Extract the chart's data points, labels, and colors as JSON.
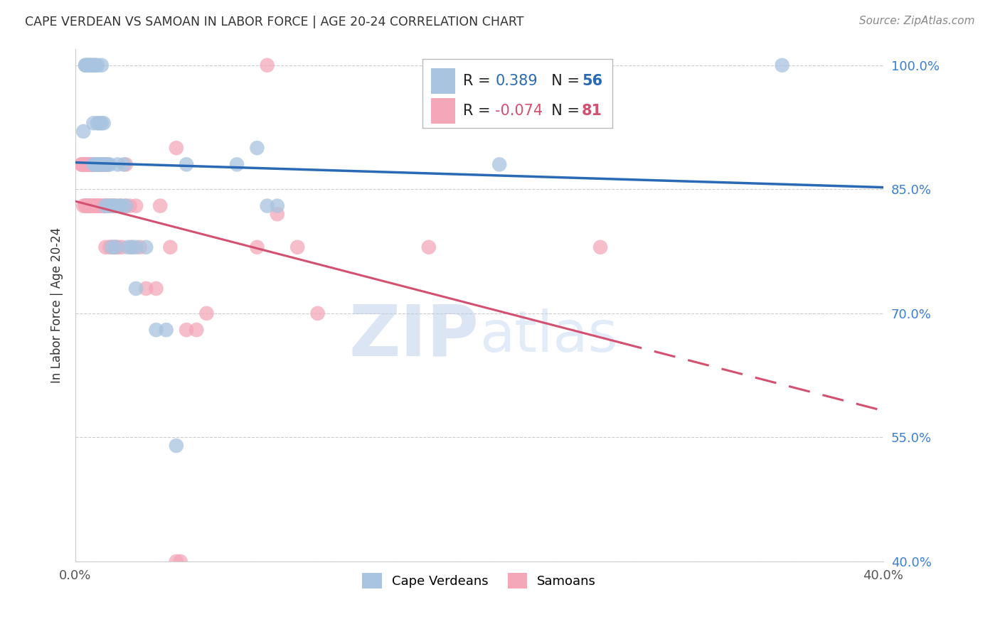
{
  "title": "CAPE VERDEAN VS SAMOAN IN LABOR FORCE | AGE 20-24 CORRELATION CHART",
  "source": "Source: ZipAtlas.com",
  "ylabel": "In Labor Force | Age 20-24",
  "xlim": [
    0.0,
    0.4
  ],
  "ylim": [
    0.4,
    1.02
  ],
  "yticks": [
    0.4,
    0.55,
    0.7,
    0.85,
    1.0
  ],
  "ytick_labels": [
    "40.0%",
    "55.0%",
    "70.0%",
    "85.0%",
    "100.0%"
  ],
  "xticks": [
    0.0,
    0.1,
    0.2,
    0.3,
    0.4
  ],
  "xtick_labels": [
    "0.0%",
    "",
    "",
    "",
    "40.0%"
  ],
  "cv_R": 0.389,
  "cv_N": 56,
  "sa_R": -0.074,
  "sa_N": 81,
  "cv_color": "#a8c4e0",
  "sa_color": "#f4a7b9",
  "cv_line_color": "#2a6ab5",
  "sa_line_color": "#d45070",
  "watermark_zip": "ZIP",
  "watermark_atlas": "atlas",
  "watermark_color": "#c8d8f0",
  "cv_scatter": [
    [
      0.004,
      0.92
    ],
    [
      0.005,
      1.0
    ],
    [
      0.005,
      1.0
    ],
    [
      0.006,
      1.0
    ],
    [
      0.006,
      1.0
    ],
    [
      0.007,
      1.0
    ],
    [
      0.007,
      1.0
    ],
    [
      0.008,
      1.0
    ],
    [
      0.008,
      1.0
    ],
    [
      0.009,
      1.0
    ],
    [
      0.009,
      0.93
    ],
    [
      0.009,
      0.88
    ],
    [
      0.01,
      1.0
    ],
    [
      0.01,
      1.0
    ],
    [
      0.01,
      0.88
    ],
    [
      0.01,
      0.88
    ],
    [
      0.011,
      1.0
    ],
    [
      0.011,
      0.93
    ],
    [
      0.011,
      0.88
    ],
    [
      0.012,
      0.93
    ],
    [
      0.012,
      0.88
    ],
    [
      0.013,
      1.0
    ],
    [
      0.013,
      0.93
    ],
    [
      0.013,
      0.88
    ],
    [
      0.014,
      0.93
    ],
    [
      0.014,
      0.88
    ],
    [
      0.015,
      0.88
    ],
    [
      0.015,
      0.83
    ],
    [
      0.016,
      0.88
    ],
    [
      0.016,
      0.83
    ],
    [
      0.017,
      0.88
    ],
    [
      0.018,
      0.83
    ],
    [
      0.018,
      0.78
    ],
    [
      0.019,
      0.83
    ],
    [
      0.02,
      0.83
    ],
    [
      0.02,
      0.78
    ],
    [
      0.021,
      0.88
    ],
    [
      0.022,
      0.83
    ],
    [
      0.023,
      0.83
    ],
    [
      0.024,
      0.88
    ],
    [
      0.025,
      0.83
    ],
    [
      0.026,
      0.78
    ],
    [
      0.028,
      0.78
    ],
    [
      0.03,
      0.78
    ],
    [
      0.03,
      0.73
    ],
    [
      0.035,
      0.78
    ],
    [
      0.04,
      0.68
    ],
    [
      0.045,
      0.68
    ],
    [
      0.05,
      0.54
    ],
    [
      0.055,
      0.88
    ],
    [
      0.08,
      0.88
    ],
    [
      0.09,
      0.9
    ],
    [
      0.095,
      0.83
    ],
    [
      0.1,
      0.83
    ],
    [
      0.21,
      0.88
    ],
    [
      0.35,
      1.0
    ]
  ],
  "sa_scatter": [
    [
      0.003,
      0.88
    ],
    [
      0.003,
      0.88
    ],
    [
      0.004,
      0.88
    ],
    [
      0.004,
      0.83
    ],
    [
      0.004,
      0.88
    ],
    [
      0.005,
      0.88
    ],
    [
      0.005,
      0.83
    ],
    [
      0.005,
      0.88
    ],
    [
      0.005,
      0.83
    ],
    [
      0.005,
      0.88
    ],
    [
      0.006,
      0.83
    ],
    [
      0.006,
      0.88
    ],
    [
      0.006,
      0.83
    ],
    [
      0.006,
      0.88
    ],
    [
      0.007,
      0.88
    ],
    [
      0.007,
      0.83
    ],
    [
      0.007,
      0.88
    ],
    [
      0.007,
      0.83
    ],
    [
      0.008,
      0.88
    ],
    [
      0.008,
      0.83
    ],
    [
      0.008,
      0.88
    ],
    [
      0.008,
      0.83
    ],
    [
      0.009,
      0.83
    ],
    [
      0.009,
      0.88
    ],
    [
      0.009,
      0.83
    ],
    [
      0.01,
      0.83
    ],
    [
      0.01,
      0.88
    ],
    [
      0.01,
      0.83
    ],
    [
      0.011,
      0.88
    ],
    [
      0.011,
      0.83
    ],
    [
      0.011,
      0.88
    ],
    [
      0.011,
      0.83
    ],
    [
      0.012,
      0.83
    ],
    [
      0.012,
      0.88
    ],
    [
      0.012,
      0.83
    ],
    [
      0.013,
      0.83
    ],
    [
      0.013,
      0.88
    ],
    [
      0.014,
      0.88
    ],
    [
      0.014,
      0.83
    ],
    [
      0.015,
      0.83
    ],
    [
      0.015,
      0.88
    ],
    [
      0.015,
      0.83
    ],
    [
      0.015,
      0.78
    ],
    [
      0.016,
      0.88
    ],
    [
      0.016,
      0.83
    ],
    [
      0.017,
      0.83
    ],
    [
      0.017,
      0.78
    ],
    [
      0.017,
      0.83
    ],
    [
      0.018,
      0.83
    ],
    [
      0.018,
      0.78
    ],
    [
      0.019,
      0.83
    ],
    [
      0.019,
      0.78
    ],
    [
      0.02,
      0.78
    ],
    [
      0.02,
      0.83
    ],
    [
      0.02,
      0.78
    ],
    [
      0.021,
      0.78
    ],
    [
      0.022,
      0.83
    ],
    [
      0.023,
      0.78
    ],
    [
      0.025,
      0.88
    ],
    [
      0.025,
      0.83
    ],
    [
      0.027,
      0.83
    ],
    [
      0.028,
      0.78
    ],
    [
      0.03,
      0.83
    ],
    [
      0.032,
      0.78
    ],
    [
      0.035,
      0.73
    ],
    [
      0.04,
      0.73
    ],
    [
      0.042,
      0.83
    ],
    [
      0.047,
      0.78
    ],
    [
      0.05,
      0.4
    ],
    [
      0.052,
      0.4
    ],
    [
      0.055,
      0.68
    ],
    [
      0.06,
      0.68
    ],
    [
      0.065,
      0.7
    ],
    [
      0.09,
      0.78
    ],
    [
      0.095,
      1.0
    ],
    [
      0.1,
      0.82
    ],
    [
      0.11,
      0.78
    ],
    [
      0.12,
      0.7
    ],
    [
      0.175,
      0.78
    ],
    [
      0.26,
      0.78
    ],
    [
      0.05,
      0.9
    ]
  ]
}
